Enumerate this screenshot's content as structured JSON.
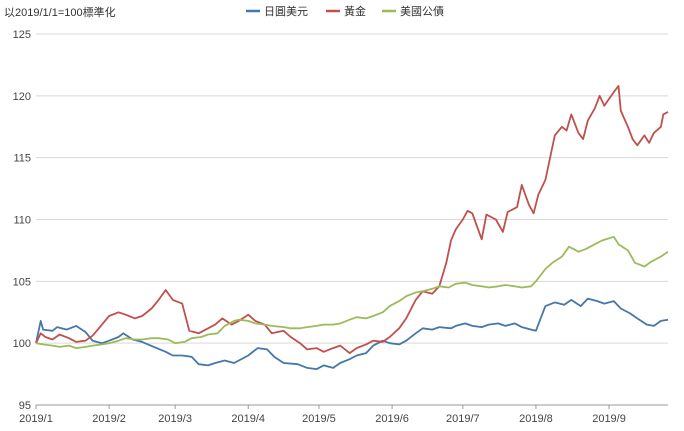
{
  "chart_data": {
    "type": "line",
    "note": "以2019/1/1=100標準化",
    "ylim": [
      95,
      125
    ],
    "yticks": [
      "95",
      "100",
      "105",
      "110",
      "115",
      "120",
      "125"
    ],
    "yticks_values": [
      95,
      100,
      105,
      110,
      115,
      120,
      125
    ],
    "xticks": [
      "2019/1",
      "2019/2",
      "2019/3",
      "2019/4",
      "2019/5",
      "2019/6",
      "2019/7",
      "2019/8",
      "2019/9"
    ],
    "xlim": [
      "2019-01-01",
      "2019-09-26"
    ],
    "xtick_dates": [
      "2019-01-01",
      "2019-02-01",
      "2019-03-01",
      "2019-04-01",
      "2019-05-01",
      "2019-06-01",
      "2019-07-01",
      "2019-08-01",
      "2019-09-01"
    ],
    "grid": true,
    "legend": "top-center",
    "series": [
      {
        "name": "日圓美元",
        "color": "#4477aa",
        "points": [
          [
            "2019-01-01",
            100.0
          ],
          [
            "2019-01-03",
            101.8
          ],
          [
            "2019-01-04",
            101.1
          ],
          [
            "2019-01-08",
            101.0
          ],
          [
            "2019-01-10",
            101.3
          ],
          [
            "2019-01-14",
            101.1
          ],
          [
            "2019-01-18",
            101.4
          ],
          [
            "2019-01-22",
            100.9
          ],
          [
            "2019-01-25",
            100.2
          ],
          [
            "2019-01-29",
            100.0
          ],
          [
            "2019-02-01",
            100.2
          ],
          [
            "2019-02-05",
            100.5
          ],
          [
            "2019-02-07",
            100.8
          ],
          [
            "2019-02-11",
            100.3
          ],
          [
            "2019-02-15",
            100.1
          ],
          [
            "2019-02-20",
            99.7
          ],
          [
            "2019-02-25",
            99.3
          ],
          [
            "2019-02-28",
            99.0
          ],
          [
            "2019-03-04",
            99.0
          ],
          [
            "2019-03-08",
            98.9
          ],
          [
            "2019-03-11",
            98.3
          ],
          [
            "2019-03-15",
            98.2
          ],
          [
            "2019-03-18",
            98.4
          ],
          [
            "2019-03-22",
            98.6
          ],
          [
            "2019-03-26",
            98.4
          ],
          [
            "2019-03-28",
            98.6
          ],
          [
            "2019-04-01",
            99.0
          ],
          [
            "2019-04-05",
            99.6
          ],
          [
            "2019-04-09",
            99.5
          ],
          [
            "2019-04-12",
            98.9
          ],
          [
            "2019-04-16",
            98.4
          ],
          [
            "2019-04-22",
            98.3
          ],
          [
            "2019-04-26",
            98.0
          ],
          [
            "2019-04-30",
            97.9
          ],
          [
            "2019-05-03",
            98.2
          ],
          [
            "2019-05-07",
            98.0
          ],
          [
            "2019-05-10",
            98.4
          ],
          [
            "2019-05-14",
            98.7
          ],
          [
            "2019-05-17",
            99.0
          ],
          [
            "2019-05-21",
            99.2
          ],
          [
            "2019-05-24",
            99.8
          ],
          [
            "2019-05-28",
            100.2
          ],
          [
            "2019-05-31",
            100.0
          ],
          [
            "2019-06-04",
            99.9
          ],
          [
            "2019-06-07",
            100.2
          ],
          [
            "2019-06-11",
            100.8
          ],
          [
            "2019-06-14",
            101.2
          ],
          [
            "2019-06-18",
            101.1
          ],
          [
            "2019-06-21",
            101.3
          ],
          [
            "2019-06-26",
            101.2
          ],
          [
            "2019-06-28",
            101.4
          ],
          [
            "2019-07-02",
            101.6
          ],
          [
            "2019-07-05",
            101.4
          ],
          [
            "2019-07-09",
            101.3
          ],
          [
            "2019-07-12",
            101.5
          ],
          [
            "2019-07-16",
            101.6
          ],
          [
            "2019-07-19",
            101.4
          ],
          [
            "2019-07-23",
            101.6
          ],
          [
            "2019-07-26",
            101.3
          ],
          [
            "2019-07-30",
            101.1
          ],
          [
            "2019-08-01",
            101.0
          ],
          [
            "2019-08-05",
            103.0
          ],
          [
            "2019-08-09",
            103.3
          ],
          [
            "2019-08-13",
            103.1
          ],
          [
            "2019-08-16",
            103.5
          ],
          [
            "2019-08-20",
            103.0
          ],
          [
            "2019-08-23",
            103.6
          ],
          [
            "2019-08-27",
            103.4
          ],
          [
            "2019-08-30",
            103.2
          ],
          [
            "2019-09-03",
            103.4
          ],
          [
            "2019-09-06",
            102.8
          ],
          [
            "2019-09-10",
            102.4
          ],
          [
            "2019-09-13",
            102.0
          ],
          [
            "2019-09-17",
            101.5
          ],
          [
            "2019-09-20",
            101.4
          ],
          [
            "2019-09-23",
            101.8
          ],
          [
            "2019-09-26",
            101.9
          ]
        ]
      },
      {
        "name": "黃金",
        "color": "#c0504d",
        "points": [
          [
            "2019-01-01",
            100.0
          ],
          [
            "2019-01-03",
            100.8
          ],
          [
            "2019-01-05",
            100.5
          ],
          [
            "2019-01-08",
            100.3
          ],
          [
            "2019-01-11",
            100.7
          ],
          [
            "2019-01-15",
            100.4
          ],
          [
            "2019-01-18",
            100.1
          ],
          [
            "2019-01-22",
            100.2
          ],
          [
            "2019-01-25",
            100.6
          ],
          [
            "2019-01-29",
            101.5
          ],
          [
            "2019-02-01",
            102.2
          ],
          [
            "2019-02-05",
            102.5
          ],
          [
            "2019-02-08",
            102.3
          ],
          [
            "2019-02-12",
            102.0
          ],
          [
            "2019-02-15",
            102.2
          ],
          [
            "2019-02-19",
            102.8
          ],
          [
            "2019-02-22",
            103.5
          ],
          [
            "2019-02-25",
            104.3
          ],
          [
            "2019-02-28",
            103.5
          ],
          [
            "2019-03-04",
            103.2
          ],
          [
            "2019-03-07",
            101.0
          ],
          [
            "2019-03-11",
            100.8
          ],
          [
            "2019-03-15",
            101.2
          ],
          [
            "2019-03-18",
            101.5
          ],
          [
            "2019-03-21",
            102.0
          ],
          [
            "2019-03-25",
            101.5
          ],
          [
            "2019-03-28",
            101.8
          ],
          [
            "2019-04-01",
            102.3
          ],
          [
            "2019-04-04",
            101.8
          ],
          [
            "2019-04-08",
            101.5
          ],
          [
            "2019-04-11",
            100.8
          ],
          [
            "2019-04-16",
            101.0
          ],
          [
            "2019-04-19",
            100.5
          ],
          [
            "2019-04-23",
            100.0
          ],
          [
            "2019-04-26",
            99.5
          ],
          [
            "2019-04-30",
            99.6
          ],
          [
            "2019-05-03",
            99.3
          ],
          [
            "2019-05-07",
            99.6
          ],
          [
            "2019-05-10",
            99.8
          ],
          [
            "2019-05-14",
            99.2
          ],
          [
            "2019-05-17",
            99.6
          ],
          [
            "2019-05-21",
            99.9
          ],
          [
            "2019-05-24",
            100.2
          ],
          [
            "2019-05-28",
            100.1
          ],
          [
            "2019-05-31",
            100.5
          ],
          [
            "2019-06-04",
            101.2
          ],
          [
            "2019-06-07",
            102.0
          ],
          [
            "2019-06-11",
            103.5
          ],
          [
            "2019-06-14",
            104.2
          ],
          [
            "2019-06-18",
            104.0
          ],
          [
            "2019-06-21",
            104.6
          ],
          [
            "2019-06-24",
            106.5
          ],
          [
            "2019-06-26",
            108.3
          ],
          [
            "2019-06-28",
            109.2
          ],
          [
            "2019-07-01",
            110.0
          ],
          [
            "2019-07-03",
            110.7
          ],
          [
            "2019-07-05",
            110.5
          ],
          [
            "2019-07-09",
            108.4
          ],
          [
            "2019-07-11",
            110.4
          ],
          [
            "2019-07-15",
            110.0
          ],
          [
            "2019-07-18",
            109.0
          ],
          [
            "2019-07-20",
            110.6
          ],
          [
            "2019-07-24",
            111.0
          ],
          [
            "2019-07-26",
            112.8
          ],
          [
            "2019-07-29",
            111.2
          ],
          [
            "2019-07-31",
            110.5
          ],
          [
            "2019-08-02",
            112.0
          ],
          [
            "2019-08-05",
            113.2
          ],
          [
            "2019-08-07",
            115.0
          ],
          [
            "2019-08-09",
            116.8
          ],
          [
            "2019-08-12",
            117.5
          ],
          [
            "2019-08-14",
            117.2
          ],
          [
            "2019-08-16",
            118.5
          ],
          [
            "2019-08-19",
            117.0
          ],
          [
            "2019-08-21",
            116.5
          ],
          [
            "2019-08-23",
            118.0
          ],
          [
            "2019-08-26",
            119.0
          ],
          [
            "2019-08-28",
            120.0
          ],
          [
            "2019-08-30",
            119.2
          ],
          [
            "2019-09-03",
            120.3
          ],
          [
            "2019-09-05",
            120.8
          ],
          [
            "2019-09-06",
            118.8
          ],
          [
            "2019-09-09",
            117.5
          ],
          [
            "2019-09-11",
            116.5
          ],
          [
            "2019-09-13",
            116.0
          ],
          [
            "2019-09-16",
            116.8
          ],
          [
            "2019-09-18",
            116.2
          ],
          [
            "2019-09-20",
            117.0
          ],
          [
            "2019-09-23",
            117.5
          ],
          [
            "2019-09-24",
            118.5
          ],
          [
            "2019-09-26",
            118.7
          ]
        ]
      },
      {
        "name": "美國公債",
        "color": "#9bbb59",
        "points": [
          [
            "2019-01-01",
            100.0
          ],
          [
            "2019-01-04",
            99.9
          ],
          [
            "2019-01-08",
            99.8
          ],
          [
            "2019-01-11",
            99.7
          ],
          [
            "2019-01-15",
            99.8
          ],
          [
            "2019-01-18",
            99.6
          ],
          [
            "2019-01-22",
            99.7
          ],
          [
            "2019-01-25",
            99.8
          ],
          [
            "2019-01-29",
            99.9
          ],
          [
            "2019-02-01",
            100.0
          ],
          [
            "2019-02-05",
            100.2
          ],
          [
            "2019-02-08",
            100.4
          ],
          [
            "2019-02-12",
            100.3
          ],
          [
            "2019-02-15",
            100.3
          ],
          [
            "2019-02-19",
            100.4
          ],
          [
            "2019-02-22",
            100.4
          ],
          [
            "2019-02-26",
            100.3
          ],
          [
            "2019-03-01",
            100.0
          ],
          [
            "2019-03-05",
            100.1
          ],
          [
            "2019-03-08",
            100.4
          ],
          [
            "2019-03-12",
            100.5
          ],
          [
            "2019-03-15",
            100.7
          ],
          [
            "2019-03-19",
            100.8
          ],
          [
            "2019-03-22",
            101.4
          ],
          [
            "2019-03-26",
            101.8
          ],
          [
            "2019-03-28",
            101.9
          ],
          [
            "2019-04-01",
            101.8
          ],
          [
            "2019-04-04",
            101.6
          ],
          [
            "2019-04-08",
            101.5
          ],
          [
            "2019-04-11",
            101.4
          ],
          [
            "2019-04-16",
            101.3
          ],
          [
            "2019-04-19",
            101.2
          ],
          [
            "2019-04-23",
            101.2
          ],
          [
            "2019-04-26",
            101.3
          ],
          [
            "2019-04-30",
            101.4
          ],
          [
            "2019-05-03",
            101.5
          ],
          [
            "2019-05-07",
            101.5
          ],
          [
            "2019-05-10",
            101.6
          ],
          [
            "2019-05-14",
            101.9
          ],
          [
            "2019-05-17",
            102.1
          ],
          [
            "2019-05-21",
            102.0
          ],
          [
            "2019-05-24",
            102.2
          ],
          [
            "2019-05-28",
            102.5
          ],
          [
            "2019-05-31",
            103.0
          ],
          [
            "2019-06-04",
            103.4
          ],
          [
            "2019-06-07",
            103.8
          ],
          [
            "2019-06-11",
            104.1
          ],
          [
            "2019-06-14",
            104.2
          ],
          [
            "2019-06-18",
            104.4
          ],
          [
            "2019-06-21",
            104.6
          ],
          [
            "2019-06-25",
            104.5
          ],
          [
            "2019-06-28",
            104.8
          ],
          [
            "2019-07-02",
            104.9
          ],
          [
            "2019-07-05",
            104.7
          ],
          [
            "2019-07-09",
            104.6
          ],
          [
            "2019-07-12",
            104.5
          ],
          [
            "2019-07-16",
            104.6
          ],
          [
            "2019-07-19",
            104.7
          ],
          [
            "2019-07-23",
            104.6
          ],
          [
            "2019-07-26",
            104.5
          ],
          [
            "2019-07-30",
            104.6
          ],
          [
            "2019-08-01",
            105.0
          ],
          [
            "2019-08-05",
            106.0
          ],
          [
            "2019-08-08",
            106.5
          ],
          [
            "2019-08-12",
            107.0
          ],
          [
            "2019-08-15",
            107.8
          ],
          [
            "2019-08-19",
            107.4
          ],
          [
            "2019-08-22",
            107.6
          ],
          [
            "2019-08-26",
            108.0
          ],
          [
            "2019-08-29",
            108.3
          ],
          [
            "2019-09-03",
            108.6
          ],
          [
            "2019-09-05",
            108.0
          ],
          [
            "2019-09-09",
            107.5
          ],
          [
            "2019-09-12",
            106.5
          ],
          [
            "2019-09-16",
            106.2
          ],
          [
            "2019-09-19",
            106.6
          ],
          [
            "2019-09-23",
            107.0
          ],
          [
            "2019-09-26",
            107.4
          ]
        ]
      }
    ]
  }
}
